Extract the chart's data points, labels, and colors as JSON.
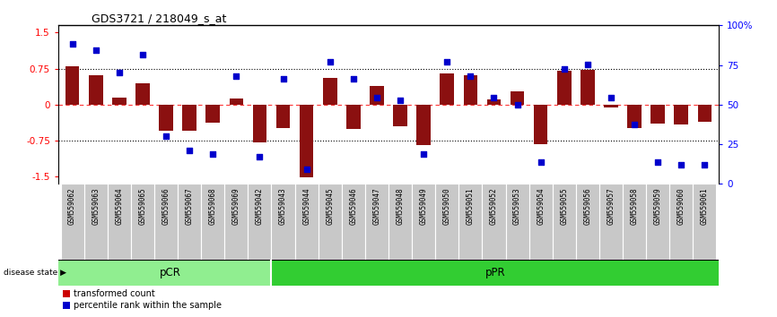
{
  "title": "GDS3721 / 218049_s_at",
  "samples": [
    "GSM559062",
    "GSM559063",
    "GSM559064",
    "GSM559065",
    "GSM559066",
    "GSM559067",
    "GSM559068",
    "GSM559069",
    "GSM559042",
    "GSM559043",
    "GSM559044",
    "GSM559045",
    "GSM559046",
    "GSM559047",
    "GSM559048",
    "GSM559049",
    "GSM559050",
    "GSM559051",
    "GSM559052",
    "GSM559053",
    "GSM559054",
    "GSM559055",
    "GSM559056",
    "GSM559057",
    "GSM559058",
    "GSM559059",
    "GSM559060",
    "GSM559061"
  ],
  "transformed_count": [
    0.8,
    0.62,
    0.15,
    0.45,
    -0.55,
    -0.55,
    -0.38,
    0.13,
    -0.78,
    -0.48,
    -1.52,
    0.55,
    -0.5,
    0.38,
    -0.45,
    -0.85,
    0.65,
    0.62,
    0.1,
    0.28,
    -0.82,
    0.7,
    0.72,
    -0.05,
    -0.48,
    -0.4,
    -0.42,
    -0.35
  ],
  "percentile_rank": [
    92,
    88,
    72,
    85,
    28,
    18,
    16,
    70,
    14,
    68,
    5,
    80,
    68,
    55,
    53,
    16,
    80,
    70,
    55,
    50,
    10,
    75,
    78,
    55,
    36,
    10,
    8,
    8
  ],
  "pcr_count": 9,
  "ppr_count": 19,
  "bar_color": "#8B1010",
  "dot_color": "#0000CC",
  "pcr_color": "#90EE90",
  "ppr_color": "#32CD32",
  "legend_bar_color": "#CC0000",
  "legend_dot_color": "#0000CC",
  "ylim": [
    -1.65,
    1.65
  ],
  "yticks_left": [
    -1.5,
    -0.75,
    0,
    0.75,
    1.5
  ],
  "yticks_right": [
    0,
    25,
    50,
    75,
    100
  ],
  "yticks_right_labels": [
    "0",
    "25",
    "50",
    "75",
    "100%"
  ],
  "background": "#ffffff",
  "tick_bg_color": "#c8c8c8"
}
